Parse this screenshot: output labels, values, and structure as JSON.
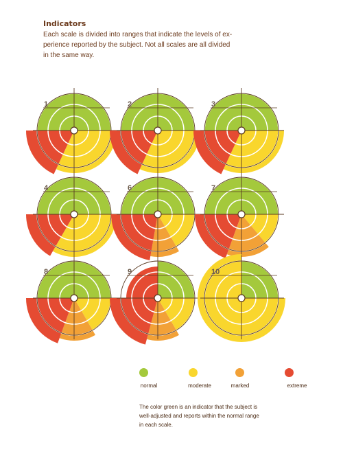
{
  "title": "Indicators",
  "intro_lines": [
    "Each scale is divided into ranges that indicate the levels of ex-",
    "perience reported by the subject. Not all scales are all divided",
    "in the same way."
  ],
  "colors": {
    "normal": "#a4c93c",
    "moderate": "#f9d62d",
    "marked": "#f2a137",
    "extreme": "#e54b32",
    "crosshair": "#5a3a22",
    "ring": "#ffffff",
    "label": "#6b5a4a"
  },
  "scales": [
    {
      "label": "1",
      "segments": [
        {
          "category": "normal",
          "from": 0,
          "to": 90,
          "r": 54
        },
        {
          "category": "normal",
          "from": 270,
          "to": 360,
          "r": 54
        },
        {
          "category": "moderate",
          "from": 90,
          "to": 205,
          "r": 62
        },
        {
          "category": "extreme",
          "from": 205,
          "to": 270,
          "r": 70
        }
      ]
    },
    {
      "label": "2",
      "segments": [
        {
          "category": "normal",
          "from": 0,
          "to": 90,
          "r": 54
        },
        {
          "category": "normal",
          "from": 270,
          "to": 360,
          "r": 54
        },
        {
          "category": "moderate",
          "from": 90,
          "to": 205,
          "r": 62
        },
        {
          "category": "extreme",
          "from": 205,
          "to": 270,
          "r": 70
        }
      ]
    },
    {
      "label": "3",
      "segments": [
        {
          "category": "normal",
          "from": 0,
          "to": 90,
          "r": 54
        },
        {
          "category": "normal",
          "from": 270,
          "to": 360,
          "r": 54
        },
        {
          "category": "moderate",
          "from": 90,
          "to": 205,
          "r": 62
        },
        {
          "category": "extreme",
          "from": 205,
          "to": 270,
          "r": 70
        }
      ]
    },
    {
      "label": "4",
      "segments": [
        {
          "category": "normal",
          "from": 0,
          "to": 90,
          "r": 54
        },
        {
          "category": "normal",
          "from": 270,
          "to": 360,
          "r": 54
        },
        {
          "category": "moderate",
          "from": 90,
          "to": 210,
          "r": 62
        },
        {
          "category": "extreme",
          "from": 210,
          "to": 270,
          "r": 70
        }
      ]
    },
    {
      "label": "6",
      "segments": [
        {
          "category": "normal",
          "from": 0,
          "to": 90,
          "r": 54
        },
        {
          "category": "normal",
          "from": 270,
          "to": 360,
          "r": 54
        },
        {
          "category": "moderate",
          "from": 90,
          "to": 150,
          "r": 54
        },
        {
          "category": "marked",
          "from": 150,
          "to": 190,
          "r": 62
        },
        {
          "category": "extreme",
          "from": 190,
          "to": 270,
          "r": 68
        }
      ]
    },
    {
      "label": "7",
      "segments": [
        {
          "category": "normal",
          "from": 0,
          "to": 90,
          "r": 54
        },
        {
          "category": "normal",
          "from": 270,
          "to": 360,
          "r": 54
        },
        {
          "category": "moderate",
          "from": 90,
          "to": 140,
          "r": 54
        },
        {
          "category": "marked",
          "from": 140,
          "to": 200,
          "r": 62
        },
        {
          "category": "extreme",
          "from": 200,
          "to": 270,
          "r": 68
        }
      ]
    },
    {
      "label": "8",
      "segments": [
        {
          "category": "normal",
          "from": 0,
          "to": 90,
          "r": 54
        },
        {
          "category": "normal",
          "from": 270,
          "to": 360,
          "r": 54
        },
        {
          "category": "moderate",
          "from": 90,
          "to": 150,
          "r": 54
        },
        {
          "category": "marked",
          "from": 150,
          "to": 200,
          "r": 62
        },
        {
          "category": "extreme",
          "from": 200,
          "to": 270,
          "r": 70
        }
      ]
    },
    {
      "label": "9",
      "segments": [
        {
          "category": "normal",
          "from": 0,
          "to": 90,
          "r": 54
        },
        {
          "category": "extreme",
          "from": 270,
          "to": 360,
          "r": 46
        },
        {
          "category": "moderate",
          "from": 90,
          "to": 150,
          "r": 54
        },
        {
          "category": "marked",
          "from": 150,
          "to": 195,
          "r": 62
        },
        {
          "category": "extreme",
          "from": 195,
          "to": 270,
          "r": 70
        }
      ]
    },
    {
      "label": "10",
      "segments": [
        {
          "category": "normal",
          "from": 0,
          "to": 90,
          "r": 54
        },
        {
          "category": "moderate",
          "from": 90,
          "to": 360,
          "r": 64
        }
      ]
    }
  ],
  "legend": [
    {
      "key": "normal",
      "label": "normal"
    },
    {
      "key": "moderate",
      "label": "moderate"
    },
    {
      "key": "marked",
      "label": "marked"
    },
    {
      "key": "extreme",
      "label": "extreme"
    }
  ],
  "note_lines": [
    "The color green is an indicator that the subject is",
    "well-adjusted and reports within the normal range",
    "in each scale."
  ]
}
